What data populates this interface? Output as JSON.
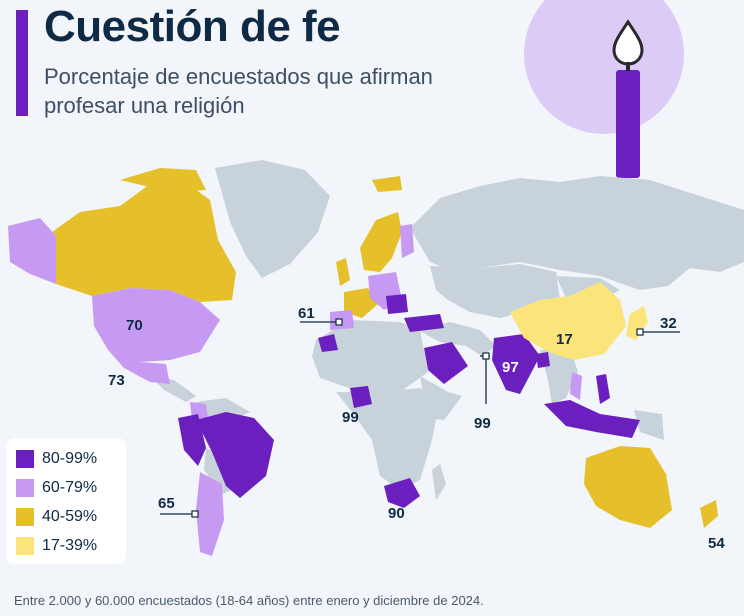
{
  "header": {
    "title": "Cuestión de fe",
    "subtitle": "Porcentaje de encuestados que afirman profesar una religión"
  },
  "legend": {
    "items": [
      {
        "label": "80-99%",
        "color": "#6b1fbf"
      },
      {
        "label": "60-79%",
        "color": "#c69af2"
      },
      {
        "label": "40-59%",
        "color": "#e6c02a"
      },
      {
        "label": "17-39%",
        "color": "#fbe57a"
      }
    ]
  },
  "colors": {
    "no_data": "#c7d2da",
    "ocean": "#f2f5f9",
    "candle": "#6b1fbf",
    "candle_circle": "#dccbf6"
  },
  "map_labels": {
    "usa": "70",
    "mexico": "73",
    "spain": "61",
    "nigeria": "99",
    "south_africa": "90",
    "india": "97",
    "singapore": "99",
    "china": "17",
    "japan": "32",
    "argentina": "65",
    "new_zealand": "54"
  },
  "footnote": "Entre 2.000 y 60.000 encuestados (18-64 años) entre enero y diciembre de 2024.",
  "icon": "candle-icon"
}
